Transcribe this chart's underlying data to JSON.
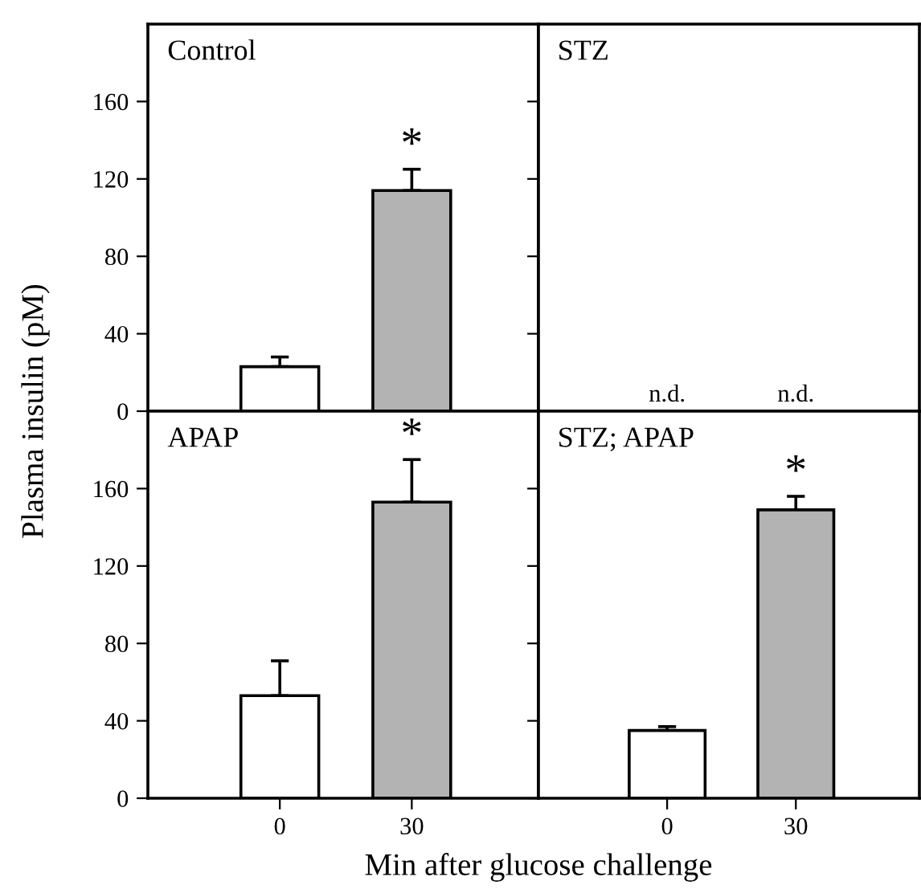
{
  "chart_data": [
    {
      "type": "bar",
      "title": "Control",
      "categories": [
        "0",
        "30"
      ],
      "values": [
        23,
        114
      ],
      "colors": [
        "#ffffff",
        "#b3b3b3"
      ],
      "errors": [
        [
          23,
          28
        ],
        [
          114,
          125
        ]
      ],
      "ylim": [
        0,
        200
      ],
      "yticks": [
        0,
        40,
        80,
        120,
        160
      ],
      "tick_labels": "y",
      "ylabel": "Plasma insulin (pM)",
      "annotations": [
        {
          "text": "*",
          "x": "30",
          "y": 125
        }
      ]
    },
    {
      "type": "bar",
      "title": "STZ",
      "categories": [
        "0",
        "30"
      ],
      "values": [
        null,
        null
      ],
      "colors": [
        "#ffffff",
        "#b3b3b3"
      ],
      "ylim": [
        0,
        200
      ],
      "yticks": [
        0,
        40,
        80,
        120,
        160
      ],
      "tick_labels": false,
      "annotations": [
        "n.d.",
        "n.d."
      ]
    },
    {
      "type": "bar",
      "title": "APAP",
      "categories": [
        "0",
        "30"
      ],
      "values": [
        53,
        153
      ],
      "colors": [
        "#ffffff",
        "#b3b3b3"
      ],
      "errors": [
        [
          53,
          71
        ],
        [
          153,
          175
        ]
      ],
      "ylim": [
        0,
        200
      ],
      "yticks": [
        0,
        40,
        80,
        120,
        160
      ],
      "xlabel": "Min after glucose challenge",
      "annotations": [
        {
          "text": "*",
          "x": "30",
          "y": 175
        }
      ]
    },
    {
      "type": "bar",
      "title": "STZ; APAP",
      "categories": [
        "0",
        "30"
      ],
      "values": [
        35,
        149
      ],
      "colors": [
        "#ffffff",
        "#b3b3b3"
      ],
      "errors": [
        [
          35,
          37
        ],
        [
          149,
          156
        ]
      ],
      "ylim": [
        0,
        200
      ],
      "yticks": [
        0,
        40,
        80,
        120,
        160
      ],
      "tick_labels": "x",
      "annotations": [
        {
          "text": "*",
          "x": "30",
          "y": 156
        }
      ]
    }
  ]
}
